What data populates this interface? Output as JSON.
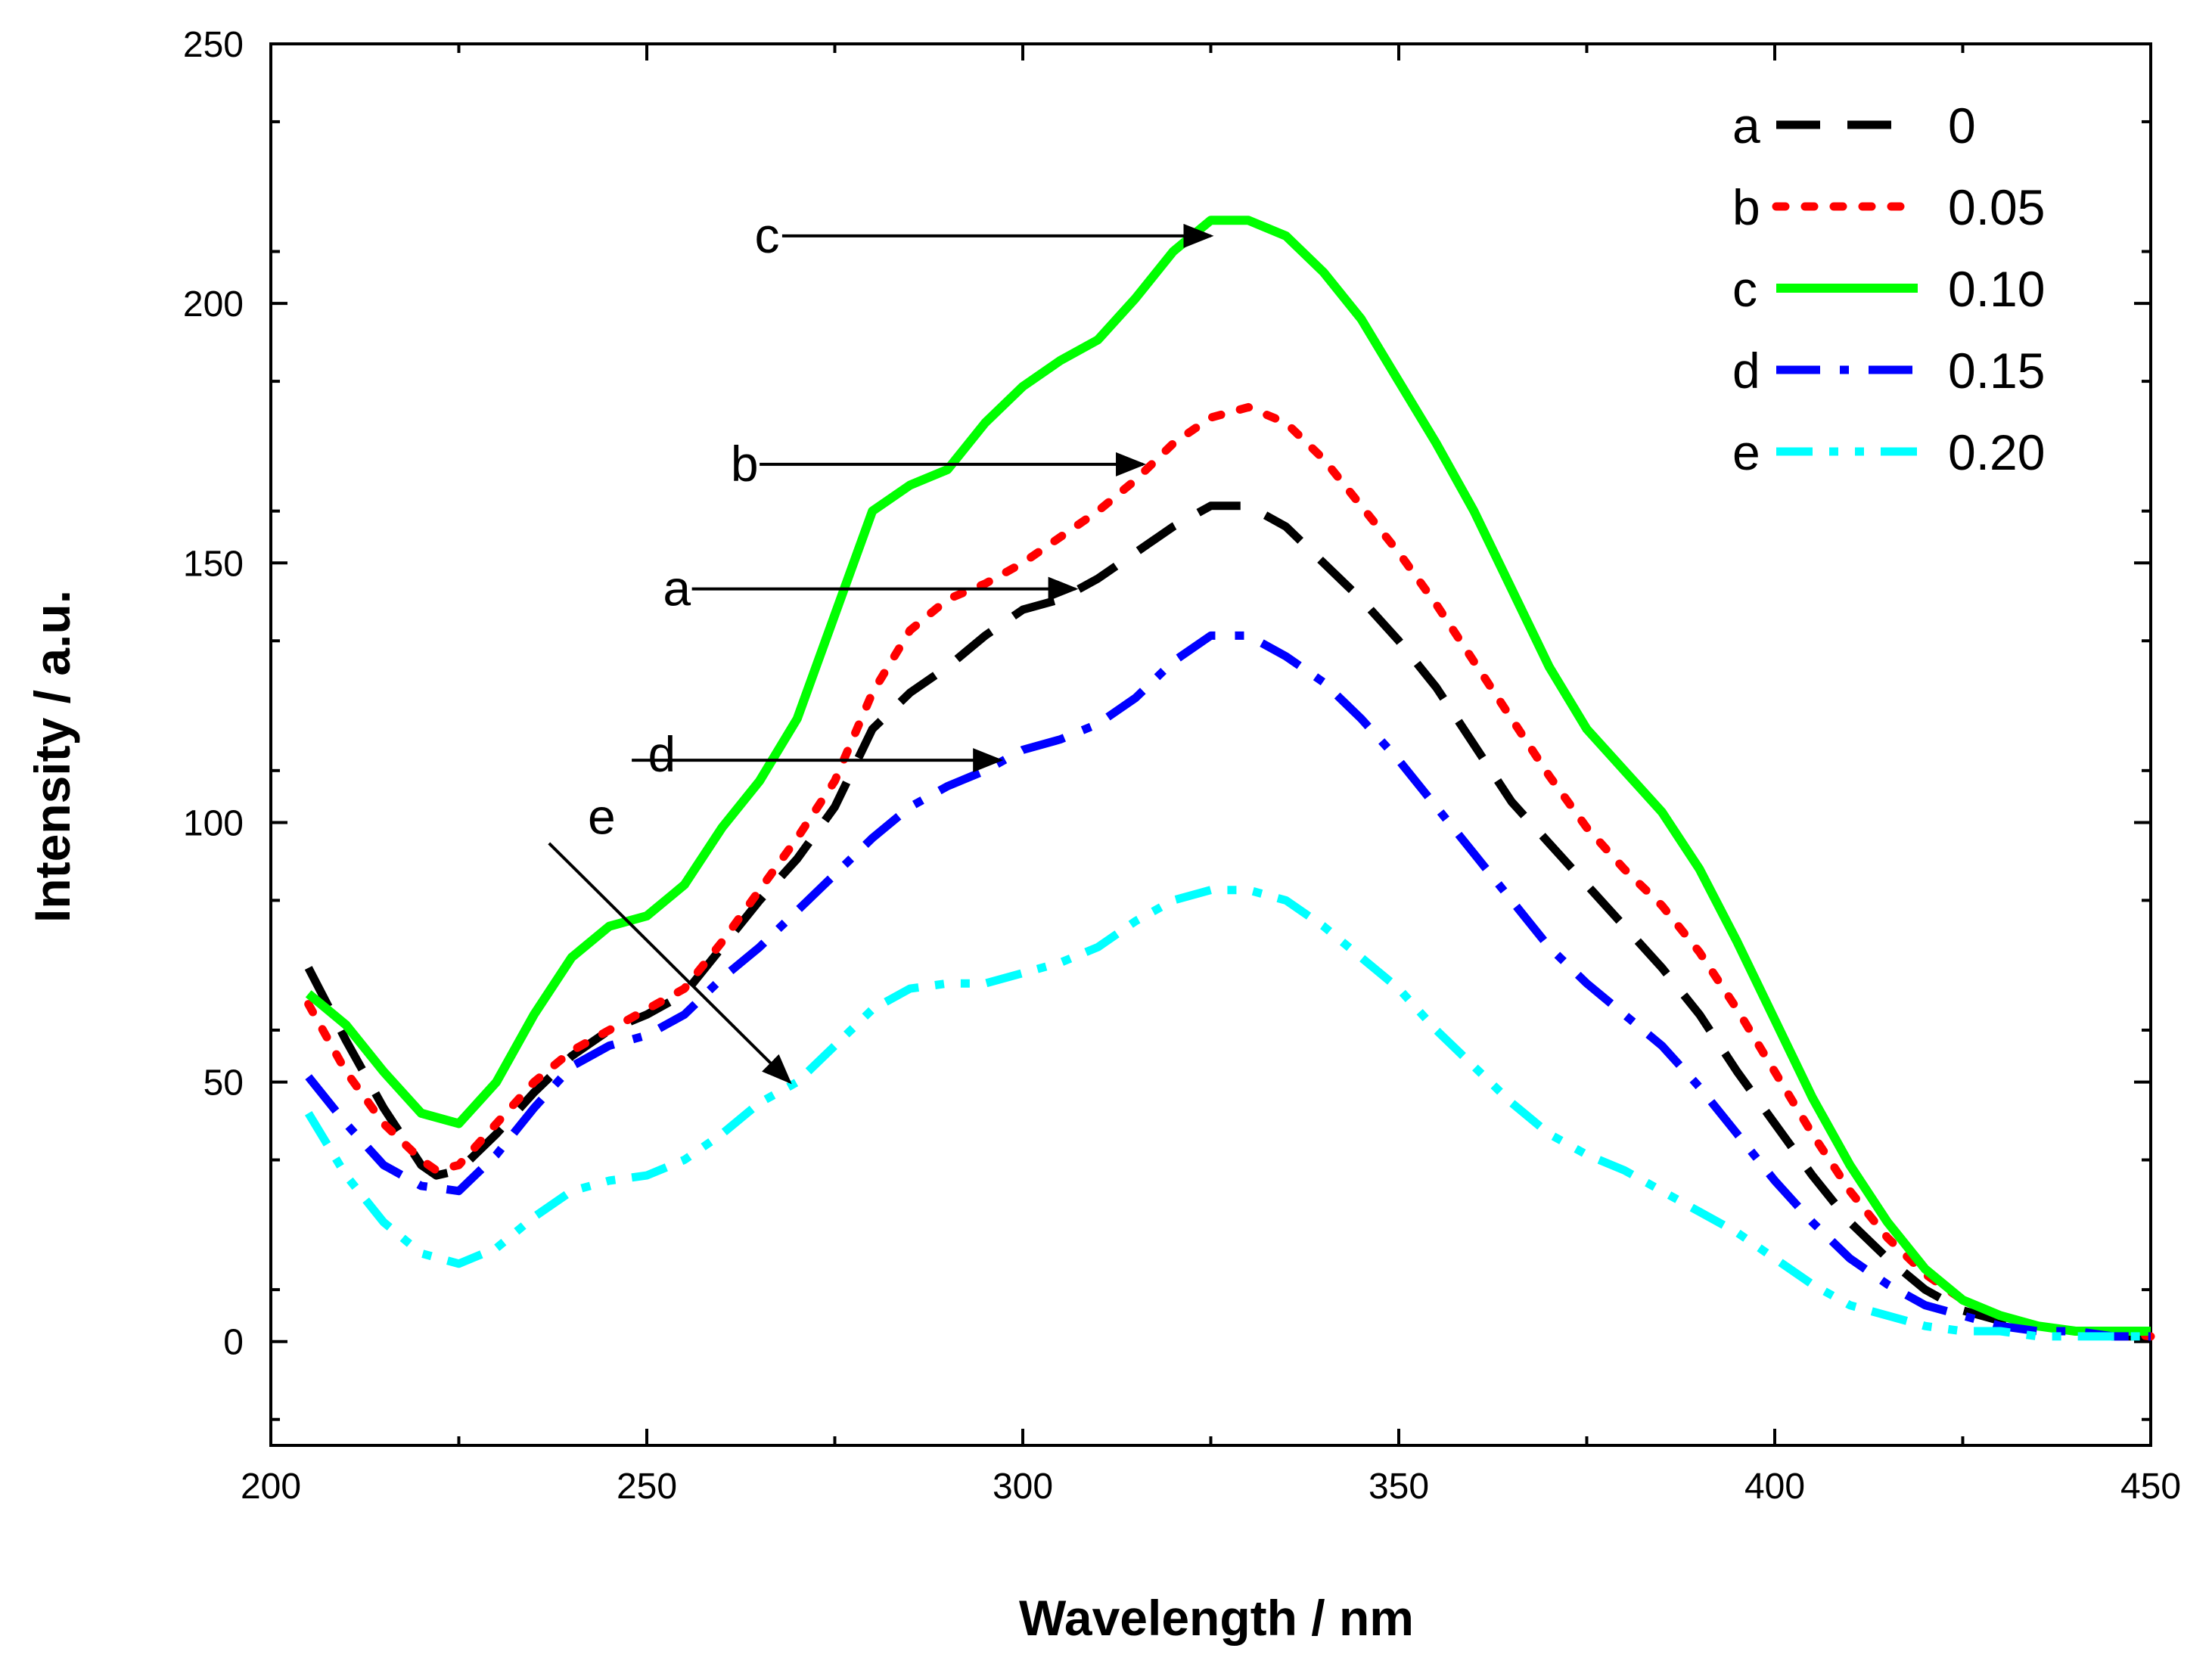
{
  "chart_data": {
    "type": "line",
    "title": "",
    "xlabel": "Wavelength / nm",
    "ylabel": "Intensity / a.u.",
    "xlim": [
      200,
      450
    ],
    "ylim": [
      -20,
      250
    ],
    "xticks": [
      200,
      250,
      300,
      350,
      400,
      450
    ],
    "yticks": [
      0,
      50,
      100,
      150,
      200,
      250
    ],
    "grid": false,
    "legend_position": "top-right",
    "series": [
      {
        "key": "a",
        "name": "0",
        "color": "#000000",
        "style": "dash",
        "points": [
          [
            205,
            72
          ],
          [
            210,
            58
          ],
          [
            215,
            45
          ],
          [
            220,
            34
          ],
          [
            222,
            32
          ],
          [
            225,
            33
          ],
          [
            230,
            40
          ],
          [
            235,
            48
          ],
          [
            240,
            55
          ],
          [
            245,
            60
          ],
          [
            250,
            63
          ],
          [
            255,
            67
          ],
          [
            260,
            76
          ],
          [
            265,
            85
          ],
          [
            270,
            93
          ],
          [
            275,
            103
          ],
          [
            280,
            118
          ],
          [
            285,
            125
          ],
          [
            290,
            130
          ],
          [
            295,
            136
          ],
          [
            300,
            141
          ],
          [
            305,
            143
          ],
          [
            310,
            147
          ],
          [
            315,
            152
          ],
          [
            320,
            157
          ],
          [
            325,
            161
          ],
          [
            330,
            161
          ],
          [
            335,
            157
          ],
          [
            340,
            150
          ],
          [
            345,
            143
          ],
          [
            350,
            135
          ],
          [
            355,
            126
          ],
          [
            360,
            115
          ],
          [
            365,
            104
          ],
          [
            370,
            96
          ],
          [
            375,
            88
          ],
          [
            380,
            80
          ],
          [
            385,
            72
          ],
          [
            390,
            63
          ],
          [
            395,
            52
          ],
          [
            400,
            42
          ],
          [
            405,
            32
          ],
          [
            410,
            23
          ],
          [
            415,
            16
          ],
          [
            420,
            10
          ],
          [
            425,
            6
          ],
          [
            430,
            4
          ],
          [
            435,
            3
          ],
          [
            440,
            2
          ],
          [
            445,
            1
          ],
          [
            450,
            1
          ]
        ]
      },
      {
        "key": "b",
        "name": "0.05",
        "color": "#ff0000",
        "style": "dot",
        "points": [
          [
            205,
            65
          ],
          [
            210,
            52
          ],
          [
            215,
            42
          ],
          [
            220,
            35
          ],
          [
            222,
            33
          ],
          [
            225,
            34
          ],
          [
            230,
            42
          ],
          [
            235,
            50
          ],
          [
            240,
            56
          ],
          [
            245,
            60
          ],
          [
            250,
            64
          ],
          [
            255,
            68
          ],
          [
            260,
            77
          ],
          [
            265,
            87
          ],
          [
            270,
            97
          ],
          [
            275,
            108
          ],
          [
            280,
            125
          ],
          [
            285,
            137
          ],
          [
            290,
            143
          ],
          [
            295,
            146
          ],
          [
            300,
            150
          ],
          [
            305,
            155
          ],
          [
            310,
            160
          ],
          [
            315,
            166
          ],
          [
            320,
            173
          ],
          [
            325,
            178
          ],
          [
            330,
            180
          ],
          [
            335,
            177
          ],
          [
            340,
            170
          ],
          [
            345,
            161
          ],
          [
            350,
            152
          ],
          [
            355,
            142
          ],
          [
            360,
            131
          ],
          [
            365,
            120
          ],
          [
            370,
            109
          ],
          [
            375,
            99
          ],
          [
            380,
            91
          ],
          [
            385,
            84
          ],
          [
            390,
            75
          ],
          [
            395,
            64
          ],
          [
            400,
            52
          ],
          [
            405,
            40
          ],
          [
            410,
            29
          ],
          [
            415,
            20
          ],
          [
            420,
            13
          ],
          [
            425,
            8
          ],
          [
            430,
            5
          ],
          [
            435,
            3
          ],
          [
            440,
            2
          ],
          [
            445,
            2
          ],
          [
            450,
            1
          ]
        ]
      },
      {
        "key": "c",
        "name": "0.10",
        "color": "#00ff00",
        "style": "solid",
        "points": [
          [
            205,
            67
          ],
          [
            210,
            61
          ],
          [
            215,
            52
          ],
          [
            220,
            44
          ],
          [
            225,
            42
          ],
          [
            230,
            50
          ],
          [
            235,
            63
          ],
          [
            240,
            74
          ],
          [
            245,
            80
          ],
          [
            250,
            82
          ],
          [
            255,
            88
          ],
          [
            260,
            99
          ],
          [
            265,
            108
          ],
          [
            270,
            120
          ],
          [
            275,
            140
          ],
          [
            280,
            160
          ],
          [
            285,
            165
          ],
          [
            290,
            168
          ],
          [
            295,
            177
          ],
          [
            300,
            184
          ],
          [
            305,
            189
          ],
          [
            310,
            193
          ],
          [
            315,
            201
          ],
          [
            320,
            210
          ],
          [
            325,
            216
          ],
          [
            330,
            216
          ],
          [
            335,
            213
          ],
          [
            340,
            206
          ],
          [
            345,
            197
          ],
          [
            350,
            185
          ],
          [
            355,
            173
          ],
          [
            360,
            160
          ],
          [
            365,
            145
          ],
          [
            370,
            130
          ],
          [
            375,
            118
          ],
          [
            380,
            110
          ],
          [
            385,
            102
          ],
          [
            390,
            91
          ],
          [
            395,
            77
          ],
          [
            400,
            62
          ],
          [
            405,
            47
          ],
          [
            410,
            34
          ],
          [
            415,
            23
          ],
          [
            420,
            14
          ],
          [
            425,
            8
          ],
          [
            430,
            5
          ],
          [
            435,
            3
          ],
          [
            440,
            2
          ],
          [
            445,
            2
          ],
          [
            450,
            2
          ]
        ]
      },
      {
        "key": "d",
        "name": "0.15",
        "color": "#0000ff",
        "style": "dashdot",
        "points": [
          [
            205,
            51
          ],
          [
            210,
            42
          ],
          [
            215,
            34
          ],
          [
            220,
            30
          ],
          [
            225,
            29
          ],
          [
            230,
            36
          ],
          [
            235,
            45
          ],
          [
            240,
            53
          ],
          [
            245,
            57
          ],
          [
            250,
            59
          ],
          [
            255,
            63
          ],
          [
            260,
            70
          ],
          [
            265,
            76
          ],
          [
            270,
            83
          ],
          [
            275,
            90
          ],
          [
            280,
            97
          ],
          [
            285,
            103
          ],
          [
            290,
            107
          ],
          [
            295,
            110
          ],
          [
            300,
            114
          ],
          [
            305,
            116
          ],
          [
            310,
            119
          ],
          [
            315,
            124
          ],
          [
            320,
            131
          ],
          [
            325,
            136
          ],
          [
            330,
            136
          ],
          [
            335,
            132
          ],
          [
            340,
            127
          ],
          [
            345,
            120
          ],
          [
            350,
            112
          ],
          [
            355,
            103
          ],
          [
            360,
            94
          ],
          [
            365,
            85
          ],
          [
            370,
            76
          ],
          [
            375,
            69
          ],
          [
            380,
            63
          ],
          [
            385,
            57
          ],
          [
            390,
            49
          ],
          [
            395,
            40
          ],
          [
            400,
            31
          ],
          [
            405,
            23
          ],
          [
            410,
            16
          ],
          [
            415,
            11
          ],
          [
            420,
            7
          ],
          [
            425,
            5
          ],
          [
            430,
            3
          ],
          [
            435,
            2
          ],
          [
            440,
            2
          ],
          [
            445,
            1
          ],
          [
            450,
            1
          ]
        ]
      },
      {
        "key": "e",
        "name": "0.20",
        "color": "#00ffff",
        "style": "dashdotdot",
        "points": [
          [
            205,
            44
          ],
          [
            210,
            32
          ],
          [
            215,
            23
          ],
          [
            220,
            17
          ],
          [
            225,
            15
          ],
          [
            230,
            18
          ],
          [
            235,
            24
          ],
          [
            240,
            29
          ],
          [
            245,
            31
          ],
          [
            250,
            32
          ],
          [
            255,
            35
          ],
          [
            260,
            40
          ],
          [
            265,
            46
          ],
          [
            270,
            50
          ],
          [
            275,
            57
          ],
          [
            280,
            64
          ],
          [
            285,
            68
          ],
          [
            290,
            69
          ],
          [
            295,
            69
          ],
          [
            300,
            71
          ],
          [
            305,
            73
          ],
          [
            310,
            76
          ],
          [
            315,
            81
          ],
          [
            320,
            85
          ],
          [
            325,
            87
          ],
          [
            330,
            87
          ],
          [
            335,
            85
          ],
          [
            340,
            80
          ],
          [
            345,
            74
          ],
          [
            350,
            68
          ],
          [
            355,
            60
          ],
          [
            360,
            53
          ],
          [
            365,
            46
          ],
          [
            370,
            40
          ],
          [
            375,
            36
          ],
          [
            380,
            33
          ],
          [
            385,
            29
          ],
          [
            390,
            25
          ],
          [
            395,
            21
          ],
          [
            400,
            16
          ],
          [
            405,
            11
          ],
          [
            410,
            7
          ],
          [
            415,
            5
          ],
          [
            420,
            3
          ],
          [
            425,
            2
          ],
          [
            430,
            2
          ],
          [
            435,
            1
          ],
          [
            440,
            1
          ],
          [
            445,
            1
          ],
          [
            450,
            1
          ]
        ]
      }
    ],
    "annotations": [
      {
        "label": "c",
        "text_at": [
          266,
          213
        ],
        "arrow_from": [
          268,
          213
        ],
        "arrow_to": [
          325,
          213
        ]
      },
      {
        "label": "b",
        "text_at": [
          263,
          169
        ],
        "arrow_from": [
          265,
          169
        ],
        "arrow_to": [
          316,
          169
        ]
      },
      {
        "label": "a",
        "text_at": [
          254,
          145
        ],
        "arrow_from": [
          256,
          145
        ],
        "arrow_to": [
          307,
          145
        ]
      },
      {
        "label": "d",
        "text_at": [
          252,
          113
        ],
        "arrow_from": [
          248,
          112
        ],
        "arrow_to": [
          297,
          112
        ]
      },
      {
        "label": "e",
        "text_at": [
          244,
          101
        ],
        "arrow_from": [
          237,
          96
        ],
        "arrow_to": [
          269,
          50
        ]
      }
    ]
  }
}
